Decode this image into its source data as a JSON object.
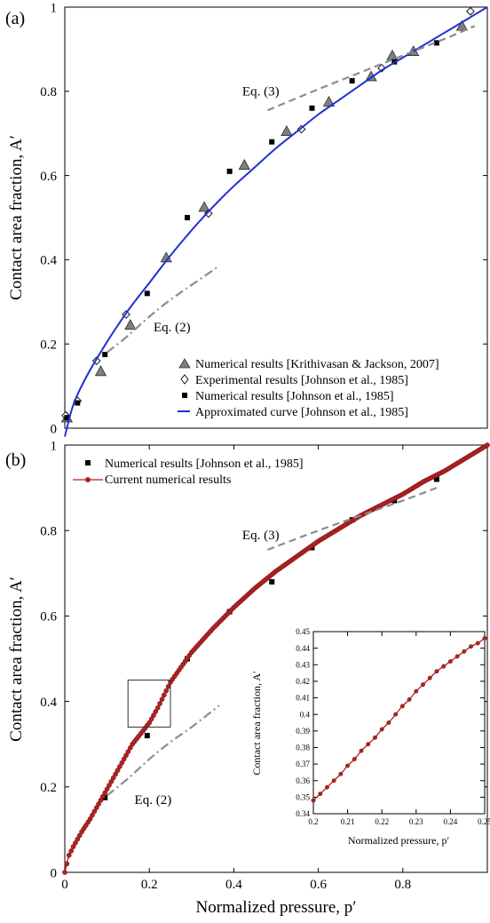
{
  "figure": {
    "xlabel": "Normalized pressure, p′",
    "colors": {
      "axis": "#000000",
      "kj_marker": "#7f7f7f",
      "johnson_num": "#000000",
      "approx_curve": "#1f2fd6",
      "eq3": "#8c8c8c",
      "eq2": "#8c8c8c",
      "current": "#b22222"
    }
  },
  "chart_data": [
    {
      "panel": "(a)",
      "type": "scatter",
      "ylabel": "Contact area fraction, A′",
      "xlim": [
        0,
        1
      ],
      "ylim": [
        0,
        1
      ],
      "x_ticks": [],
      "y_ticks": [
        0,
        0.2,
        0.4,
        0.6,
        0.8,
        1
      ],
      "y_tick_labels": [
        "0",
        "0.2",
        "0.4",
        "0.6",
        "0.8",
        "1"
      ],
      "legend_position": "bottom-right",
      "annotations": [
        {
          "text": "Eq. (3)",
          "x": 0.42,
          "y": 0.79
        },
        {
          "text": "Eq. (2)",
          "x": 0.21,
          "y": 0.23
        }
      ],
      "series": [
        {
          "name": "Numerical results [Krithivasan & Jackson, 2007]",
          "kind": "triangle",
          "color": "#7f7f7f",
          "x": [
            0.005,
            0.085,
            0.155,
            0.24,
            0.33,
            0.425,
            0.525,
            0.625,
            0.725,
            0.775,
            0.825,
            0.94
          ],
          "y": [
            0.025,
            0.135,
            0.245,
            0.405,
            0.525,
            0.625,
            0.705,
            0.775,
            0.835,
            0.885,
            0.895,
            0.955
          ]
        },
        {
          "name": "Experimental results [Johnson et al., 1985]",
          "kind": "diamond",
          "color": "#000000",
          "x": [
            0.002,
            0.03,
            0.075,
            0.145,
            0.34,
            0.56,
            0.75,
            0.96
          ],
          "y": [
            0.03,
            0.065,
            0.16,
            0.27,
            0.51,
            0.71,
            0.855,
            0.99
          ]
        },
        {
          "name": "Numerical results [Johnson et al., 1985]",
          "kind": "square",
          "color": "#000000",
          "x": [
            0.005,
            0.03,
            0.095,
            0.195,
            0.29,
            0.39,
            0.49,
            0.585,
            0.68,
            0.78,
            0.88
          ],
          "y": [
            0.025,
            0.06,
            0.175,
            0.32,
            0.5,
            0.61,
            0.68,
            0.76,
            0.825,
            0.87,
            0.915
          ]
        },
        {
          "name": "Approximated curve [Johnson et al., 1985]",
          "kind": "curve",
          "color": "#1f2fd6",
          "x": [
            0,
            0.02,
            0.05,
            0.1,
            0.15,
            0.2,
            0.25,
            0.3,
            0.35,
            0.4,
            0.45,
            0.5,
            0.55,
            0.6,
            0.65,
            0.7,
            0.75,
            0.8,
            0.85,
            0.9,
            0.95,
            1.0
          ],
          "y": [
            -0.02,
            0.055,
            0.12,
            0.205,
            0.28,
            0.345,
            0.41,
            0.47,
            0.525,
            0.575,
            0.62,
            0.665,
            0.705,
            0.745,
            0.78,
            0.815,
            0.85,
            0.88,
            0.91,
            0.94,
            0.97,
            1.0
          ]
        },
        {
          "name": "Eq. (3)",
          "kind": "dashed",
          "color": "#8c8c8c",
          "x": [
            0.48,
            0.6,
            0.7,
            0.8,
            0.9,
            0.97
          ],
          "y": [
            0.755,
            0.805,
            0.845,
            0.885,
            0.925,
            0.955
          ]
        },
        {
          "name": "Eq. (2)",
          "kind": "dashdot",
          "color": "#8c8c8c",
          "x": [
            0.1,
            0.15,
            0.2,
            0.25,
            0.3,
            0.365
          ],
          "y": [
            0.18,
            0.22,
            0.265,
            0.305,
            0.34,
            0.385
          ]
        }
      ]
    },
    {
      "panel": "(b)",
      "type": "scatter",
      "ylabel": "Contact area fraction, A′",
      "xlabel": "Normalized pressure, p′",
      "xlim": [
        0,
        1
      ],
      "ylim": [
        0,
        1
      ],
      "x_ticks": [
        0,
        0.2,
        0.4,
        0.6,
        0.8
      ],
      "x_tick_labels": [
        "0",
        "0.2",
        "0.4",
        "0.6",
        "0.8"
      ],
      "y_ticks": [
        0,
        0.2,
        0.4,
        0.6,
        0.8,
        1
      ],
      "y_tick_labels": [
        "0",
        "0.2",
        "0.4",
        "0.6",
        "0.8",
        "1"
      ],
      "legend_position": "top-left",
      "annotations": [
        {
          "text": "Eq. (3)",
          "x": 0.42,
          "y": 0.78
        },
        {
          "text": "Eq. (2)",
          "x": 0.165,
          "y": 0.16
        }
      ],
      "zoom_box": {
        "x": [
          0.2,
          0.25
        ],
        "y": [
          0.34,
          0.45
        ]
      },
      "series": [
        {
          "name": "Numerical results [Johnson et al., 1985]",
          "kind": "square",
          "color": "#000000",
          "x": [
            0.095,
            0.195,
            0.29,
            0.39,
            0.49,
            0.585,
            0.68,
            0.78,
            0.88
          ],
          "y": [
            0.175,
            0.32,
            0.5,
            0.61,
            0.68,
            0.76,
            0.825,
            0.87,
            0.92
          ]
        },
        {
          "name": "Current numerical results",
          "kind": "dotline",
          "color": "#b22222",
          "x": [
            0,
            0.01,
            0.02,
            0.04,
            0.06,
            0.08,
            0.1,
            0.12,
            0.14,
            0.16,
            0.18,
            0.2,
            0.22,
            0.25,
            0.3,
            0.35,
            0.4,
            0.45,
            0.5,
            0.55,
            0.6,
            0.65,
            0.7,
            0.75,
            0.8,
            0.85,
            0.9,
            0.95,
            1.0
          ],
          "y": [
            0,
            0.04,
            0.06,
            0.095,
            0.125,
            0.16,
            0.195,
            0.23,
            0.265,
            0.3,
            0.325,
            0.35,
            0.385,
            0.445,
            0.515,
            0.57,
            0.62,
            0.665,
            0.705,
            0.74,
            0.775,
            0.805,
            0.835,
            0.86,
            0.885,
            0.915,
            0.94,
            0.97,
            1.0
          ]
        },
        {
          "name": "Eq. (3)",
          "kind": "dashed",
          "color": "#8c8c8c",
          "x": [
            0.48,
            0.6,
            0.7,
            0.8,
            0.88
          ],
          "y": [
            0.755,
            0.8,
            0.835,
            0.87,
            0.9
          ]
        },
        {
          "name": "Eq. (2)",
          "kind": "dashdot",
          "color": "#8c8c8c",
          "x": [
            0.1,
            0.15,
            0.2,
            0.25,
            0.3,
            0.365
          ],
          "y": [
            0.18,
            0.22,
            0.265,
            0.305,
            0.34,
            0.39
          ]
        }
      ]
    },
    {
      "panel": "inset",
      "type": "line",
      "ylabel": "Contact area fraction, A′",
      "xlabel": "Normalized pressure, p′",
      "xlim": [
        0.2,
        0.25
      ],
      "ylim": [
        0.34,
        0.45
      ],
      "x_ticks": [
        0.2,
        0.21,
        0.22,
        0.23,
        0.24,
        0.25
      ],
      "x_tick_labels": [
        "0.2",
        "0.21",
        "0.22",
        "0.23",
        "0.24",
        "0.25"
      ],
      "y_ticks": [
        0.34,
        0.35,
        0.36,
        0.37,
        0.38,
        0.39,
        0.4,
        0.41,
        0.42,
        0.43,
        0.44,
        0.45
      ],
      "y_tick_labels": [
        "0.34",
        "0.35",
        "0.36",
        "0.37",
        "0.38",
        "0.39",
        "0.4",
        "0.41",
        "0.42",
        "0.43",
        "0.44",
        "0.45"
      ],
      "series": [
        {
          "name": "Current numerical results",
          "kind": "dotline",
          "color": "#b22222",
          "x": [
            0.2,
            0.202,
            0.204,
            0.206,
            0.208,
            0.21,
            0.212,
            0.214,
            0.216,
            0.218,
            0.22,
            0.222,
            0.224,
            0.226,
            0.228,
            0.23,
            0.232,
            0.234,
            0.236,
            0.238,
            0.24,
            0.242,
            0.244,
            0.246,
            0.248,
            0.25
          ],
          "y": [
            0.348,
            0.352,
            0.356,
            0.36,
            0.364,
            0.369,
            0.373,
            0.378,
            0.382,
            0.386,
            0.391,
            0.395,
            0.4,
            0.405,
            0.409,
            0.414,
            0.418,
            0.422,
            0.426,
            0.429,
            0.432,
            0.435,
            0.438,
            0.441,
            0.443,
            0.446
          ]
        }
      ]
    }
  ]
}
